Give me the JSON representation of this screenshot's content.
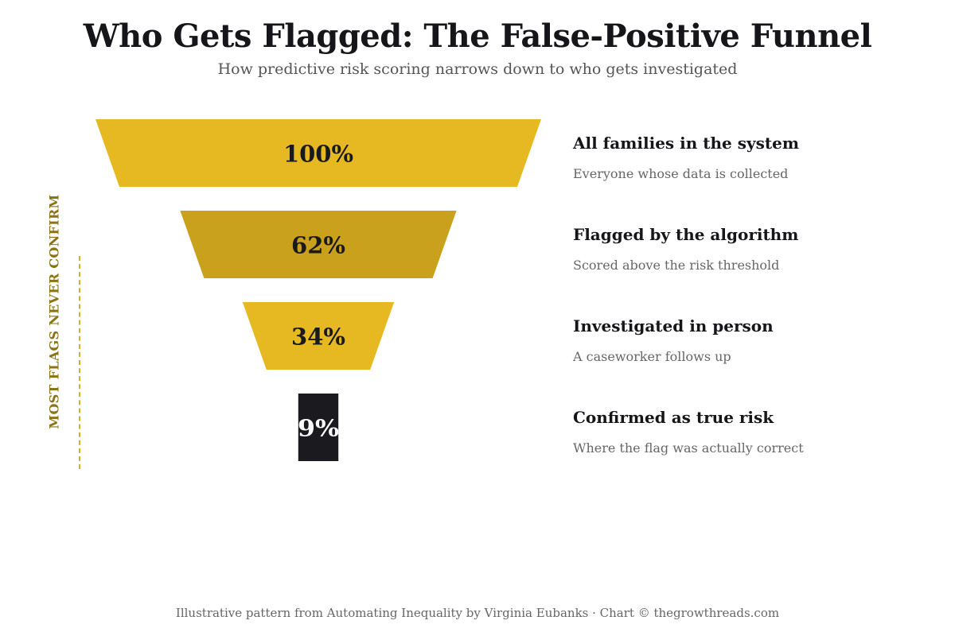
{
  "chart_data": {
    "type": "funnel",
    "title": "Who Gets Flagged: The False-Positive Funnel",
    "subtitle": "How predictive risk scoring narrows down to who gets investigated",
    "unit": "%",
    "stages": [
      {
        "value": 100,
        "label": "100%",
        "name": "All families in the system",
        "description": "Everyone whose data is collected",
        "color": "#e6b923",
        "text_color": "#1a1a1a"
      },
      {
        "value": 62,
        "label": "62%",
        "name": "Flagged by the algorithm",
        "description": "Scored above the risk threshold",
        "color": "#c9a11c",
        "text_color": "#1a1a1a"
      },
      {
        "value": 34,
        "label": "34%",
        "name": "Investigated in person",
        "description": "A caseworker follows up",
        "color": "#e6b923",
        "text_color": "#1a1a1a"
      },
      {
        "value": 9,
        "label": "9%",
        "name": "Confirmed as true risk",
        "description": "Where the flag was actually correct",
        "color": "#1a1a1f",
        "text_color": "#ffffff"
      }
    ],
    "annotation": "MOST FLAGS NEVER CONFIRM",
    "annotation_color": "#8a7416",
    "footer": "Illustrative pattern from Automating Inequality by Virginia Eubanks · Chart © thegrowthreads.com"
  }
}
